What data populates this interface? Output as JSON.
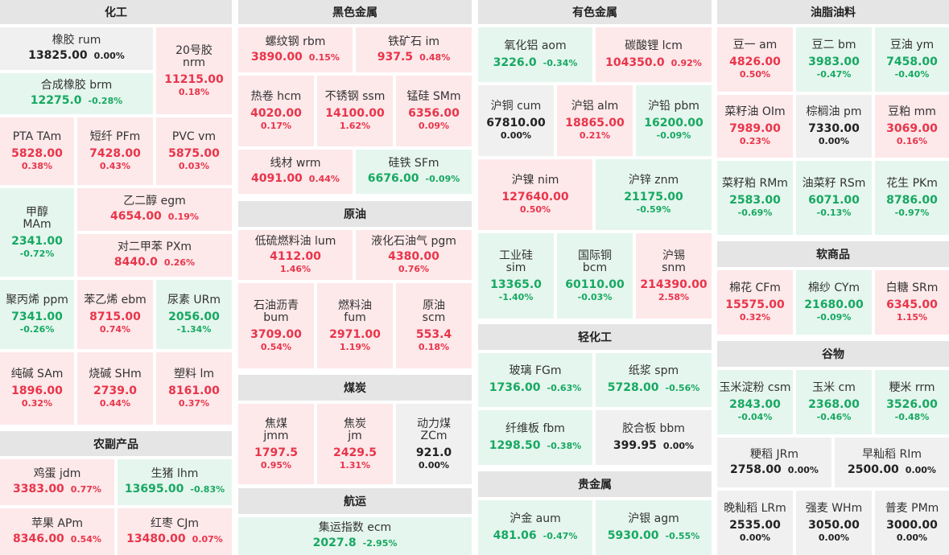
{
  "sections": [
    {
      "id": "chem",
      "title": "化工"
    },
    {
      "id": "agri",
      "title": "农副产品"
    },
    {
      "id": "ferrous",
      "title": "黑色金属"
    },
    {
      "id": "crude",
      "title": "原油"
    },
    {
      "id": "coal",
      "title": "煤炭"
    },
    {
      "id": "ship",
      "title": "航运"
    },
    {
      "id": "nonferrous",
      "title": "有色金属"
    },
    {
      "id": "light",
      "title": "轻化工"
    },
    {
      "id": "precious",
      "title": "贵金属"
    },
    {
      "id": "oils",
      "title": "油脂油料"
    },
    {
      "id": "soft",
      "title": "软商品"
    },
    {
      "id": "grain",
      "title": "谷物"
    }
  ],
  "tiles": [
    {
      "name": "橡胶 rum",
      "price": "13825.00",
      "change": "0.00%",
      "trend": "flat"
    },
    {
      "name": "20号胶",
      "code": "nrm",
      "price": "11215.00",
      "change": "0.18%",
      "trend": "up"
    },
    {
      "name": "合成橡胶 brm",
      "price": "12275.0",
      "change": "-0.28%",
      "trend": "down"
    },
    {
      "name": "PTA TAm",
      "price": "5828.00",
      "change": "0.38%",
      "trend": "up"
    },
    {
      "name": "短纤 PFm",
      "price": "7428.00",
      "change": "0.43%",
      "trend": "up"
    },
    {
      "name": "PVC vm",
      "price": "5875.00",
      "change": "0.03%",
      "trend": "up"
    },
    {
      "name": "甲醇",
      "code": "MAm",
      "price": "2341.00",
      "change": "-0.72%",
      "trend": "down"
    },
    {
      "name": "乙二醇 egm",
      "price": "4654.00",
      "change": "0.19%",
      "trend": "up"
    },
    {
      "name": "对二甲苯 PXm",
      "price": "8440.0",
      "change": "0.26%",
      "trend": "up"
    },
    {
      "name": "聚丙烯 ppm",
      "price": "7341.00",
      "change": "-0.26%",
      "trend": "down"
    },
    {
      "name": "苯乙烯 ebm",
      "price": "8715.00",
      "change": "0.74%",
      "trend": "up"
    },
    {
      "name": "尿素 URm",
      "price": "2056.00",
      "change": "-1.34%",
      "trend": "down"
    },
    {
      "name": "纯碱 SAm",
      "price": "1896.00",
      "change": "0.32%",
      "trend": "up"
    },
    {
      "name": "烧碱 SHm",
      "price": "2739.0",
      "change": "0.44%",
      "trend": "up"
    },
    {
      "name": "塑料 lm",
      "price": "8161.00",
      "change": "0.37%",
      "trend": "up"
    },
    {
      "name": "鸡蛋 jdm",
      "price": "3383.00",
      "change": "0.77%",
      "trend": "up"
    },
    {
      "name": "生猪 lhm",
      "price": "13695.00",
      "change": "-0.83%",
      "trend": "down"
    },
    {
      "name": "苹果 APm",
      "price": "8346.00",
      "change": "0.54%",
      "trend": "up"
    },
    {
      "name": "红枣 CJm",
      "price": "13480.00",
      "change": "0.07%",
      "trend": "up"
    },
    {
      "name": "螺纹钢 rbm",
      "price": "3890.00",
      "change": "0.15%",
      "trend": "up"
    },
    {
      "name": "铁矿石 im",
      "price": "937.5",
      "change": "0.48%",
      "trend": "up"
    },
    {
      "name": "热卷 hcm",
      "price": "4020.00",
      "change": "0.17%",
      "trend": "up"
    },
    {
      "name": "不锈钢 ssm",
      "price": "14100.00",
      "change": "1.62%",
      "trend": "up"
    },
    {
      "name": "锰硅 SMm",
      "price": "6356.00",
      "change": "0.09%",
      "trend": "up"
    },
    {
      "name": "线材 wrm",
      "price": "4091.00",
      "change": "0.44%",
      "trend": "up"
    },
    {
      "name": "硅铁 SFm",
      "price": "6676.00",
      "change": "-0.09%",
      "trend": "down"
    },
    {
      "name": "低硫燃料油 lum",
      "price": "4112.00",
      "change": "1.46%",
      "trend": "up"
    },
    {
      "name": "液化石油气 pgm",
      "price": "4380.00",
      "change": "0.76%",
      "trend": "up"
    },
    {
      "name": "石油沥青",
      "code": "bum",
      "price": "3709.00",
      "change": "0.54%",
      "trend": "up"
    },
    {
      "name": "燃料油",
      "code": "fum",
      "price": "2971.00",
      "change": "1.19%",
      "trend": "up"
    },
    {
      "name": "原油",
      "code": "scm",
      "price": "553.4",
      "change": "0.18%",
      "trend": "up"
    },
    {
      "name": "焦煤",
      "code": "jmm",
      "price": "1797.5",
      "change": "0.95%",
      "trend": "up"
    },
    {
      "name": "焦炭",
      "code": "jm",
      "price": "2429.5",
      "change": "1.31%",
      "trend": "up"
    },
    {
      "name": "动力煤",
      "code": "ZCm",
      "price": "921.0",
      "change": "0.00%",
      "trend": "flat"
    },
    {
      "name": "集运指数 ecm",
      "price": "2027.8",
      "change": "-2.95%",
      "trend": "down"
    },
    {
      "name": "氧化铝 aom",
      "price": "3226.0",
      "change": "-0.34%",
      "trend": "down"
    },
    {
      "name": "碳酸锂 lcm",
      "price": "104350.0",
      "change": "0.92%",
      "trend": "up"
    },
    {
      "name": "沪铜 cum",
      "price": "67810.00",
      "change": "0.00%",
      "trend": "flat"
    },
    {
      "name": "沪铝 alm",
      "price": "18865.00",
      "change": "0.21%",
      "trend": "up"
    },
    {
      "name": "沪铅 pbm",
      "price": "16200.00",
      "change": "-0.09%",
      "trend": "down"
    },
    {
      "name": "沪镍 nim",
      "price": "127640.00",
      "change": "0.50%",
      "trend": "up"
    },
    {
      "name": "沪锌 znm",
      "price": "21175.00",
      "change": "-0.59%",
      "trend": "down"
    },
    {
      "name": "工业硅",
      "code": "sim",
      "price": "13365.0",
      "change": "-1.40%",
      "trend": "down"
    },
    {
      "name": "国际铜",
      "code": "bcm",
      "price": "60110.00",
      "change": "-0.03%",
      "trend": "down"
    },
    {
      "name": "沪锡",
      "code": "snm",
      "price": "214390.00",
      "change": "2.58%",
      "trend": "up"
    },
    {
      "name": "玻璃 FGm",
      "price": "1736.00",
      "change": "-0.63%",
      "trend": "down"
    },
    {
      "name": "纸浆 spm",
      "price": "5728.00",
      "change": "-0.56%",
      "trend": "down"
    },
    {
      "name": "纤维板 fbm",
      "price": "1298.50",
      "change": "-0.38%",
      "trend": "down"
    },
    {
      "name": "胶合板 bbm",
      "price": "399.95",
      "change": "0.00%",
      "trend": "flat"
    },
    {
      "name": "沪金 aum",
      "price": "481.06",
      "change": "-0.47%",
      "trend": "down"
    },
    {
      "name": "沪银 agm",
      "price": "5930.00",
      "change": "-0.55%",
      "trend": "down"
    },
    {
      "name": "豆一 am",
      "price": "4826.00",
      "change": "0.50%",
      "trend": "up"
    },
    {
      "name": "豆二 bm",
      "price": "3983.00",
      "change": "-0.47%",
      "trend": "down"
    },
    {
      "name": "豆油 ym",
      "price": "7458.00",
      "change": "-0.40%",
      "trend": "down"
    },
    {
      "name": "菜籽油 OIm",
      "price": "7989.00",
      "change": "0.23%",
      "trend": "up"
    },
    {
      "name": "棕榈油 pm",
      "price": "7330.00",
      "change": "0.00%",
      "trend": "flat"
    },
    {
      "name": "豆粕 mm",
      "price": "3069.00",
      "change": "0.16%",
      "trend": "up"
    },
    {
      "name": "菜籽粕 RMm",
      "price": "2583.00",
      "change": "-0.69%",
      "trend": "down"
    },
    {
      "name": "油菜籽 RSm",
      "price": "6071.00",
      "change": "-0.13%",
      "trend": "down"
    },
    {
      "name": "花生 PKm",
      "price": "8786.00",
      "change": "-0.97%",
      "trend": "down"
    },
    {
      "name": "棉花 CFm",
      "price": "15575.00",
      "change": "0.32%",
      "trend": "up"
    },
    {
      "name": "棉纱 CYm",
      "price": "21680.00",
      "change": "-0.09%",
      "trend": "down"
    },
    {
      "name": "白糖 SRm",
      "price": "6345.00",
      "change": "1.15%",
      "trend": "up"
    },
    {
      "name": "玉米淀粉 csm",
      "price": "2843.00",
      "change": "-0.04%",
      "trend": "down"
    },
    {
      "name": "玉米 cm",
      "price": "2368.00",
      "change": "-0.46%",
      "trend": "down"
    },
    {
      "name": "粳米 rrm",
      "price": "3526.00",
      "change": "-0.48%",
      "trend": "down"
    },
    {
      "name": "粳稻 JRm",
      "price": "2758.00",
      "change": "0.00%",
      "trend": "flat"
    },
    {
      "name": "早籼稻 RIm",
      "price": "2500.00",
      "change": "0.00%",
      "trend": "flat"
    },
    {
      "name": "晚籼稻 LRm",
      "price": "2535.00",
      "change": "0.00%",
      "trend": "flat"
    },
    {
      "name": "强麦 WHm",
      "price": "3050.00",
      "change": "0.00%",
      "trend": "flat"
    },
    {
      "name": "普麦 PMm",
      "price": "3000.00",
      "change": "0.00%",
      "trend": "flat"
    }
  ]
}
